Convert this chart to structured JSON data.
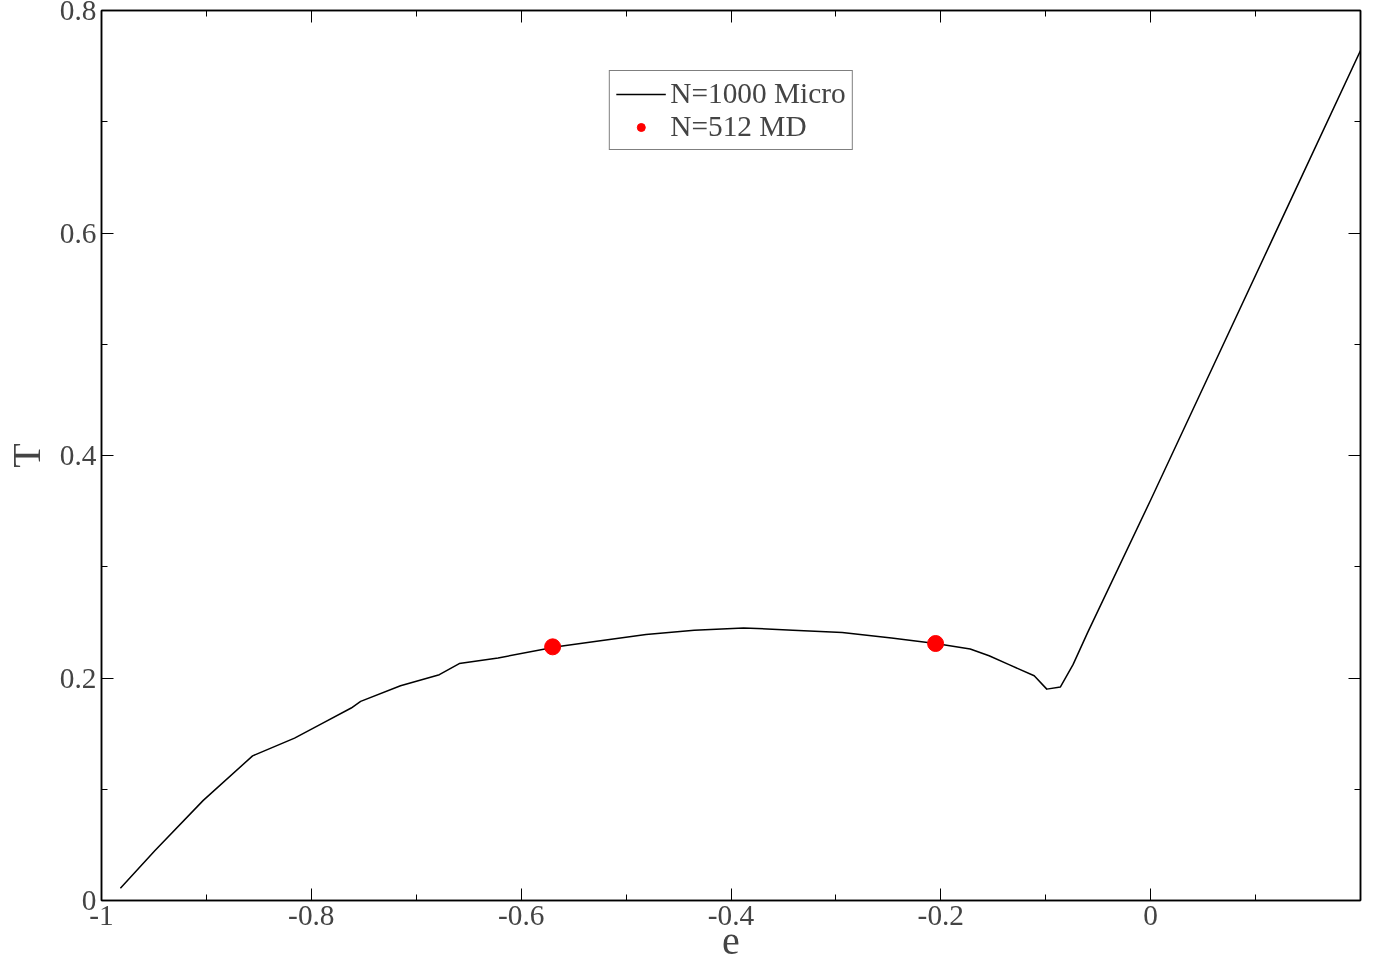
{
  "chart_data": {
    "type": "line",
    "xlabel": "e",
    "ylabel": "T",
    "xlim": [
      -1,
      0.2
    ],
    "ylim": [
      0,
      0.8
    ],
    "xticks": [
      -1,
      {
        "value": -0.9,
        "label": null
      },
      -0.8,
      {
        "value": -0.7,
        "label": null
      },
      -0.6,
      {
        "value": -0.5,
        "label": null
      },
      -0.4,
      {
        "value": -0.3,
        "label": null
      },
      -0.2,
      {
        "value": -0.1,
        "label": null
      },
      0,
      {
        "value": 0.1,
        "label": null
      }
    ],
    "yticks": [
      0,
      {
        "value": 0.1,
        "label": null
      },
      0.2,
      {
        "value": 0.3,
        "label": null
      },
      0.4,
      {
        "value": 0.5,
        "label": null
      },
      0.6,
      {
        "value": 0.7,
        "label": null
      },
      0.8
    ],
    "grid": false,
    "legend": "top",
    "series": [
      {
        "name": "N=1000 Micro",
        "color": "#000000",
        "marker": "none",
        "line_style": "solid",
        "x": [
          -0.982,
          -0.949,
          -0.903,
          -0.856,
          -0.816,
          -0.79,
          -0.762,
          -0.753,
          -0.715,
          -0.678,
          -0.659,
          -0.622,
          -0.566,
          -0.528,
          -0.481,
          -0.435,
          -0.388,
          -0.341,
          -0.294,
          -0.247,
          -0.205,
          -0.172,
          -0.154,
          -0.135,
          -0.111,
          -0.099,
          -0.086,
          -0.074,
          -0.06,
          0.0,
          0.2
        ],
        "values": [
          0.011,
          0.045,
          0.09,
          0.13,
          0.146,
          0.159,
          0.173,
          0.179,
          0.193,
          0.203,
          0.213,
          0.218,
          0.228,
          0.233,
          0.239,
          0.243,
          0.245,
          0.243,
          0.241,
          0.236,
          0.231,
          0.226,
          0.22,
          0.212,
          0.202,
          0.19,
          0.192,
          0.212,
          0.241,
          0.36,
          0.764
        ]
      },
      {
        "name": "N=512 MD",
        "type": "scatter",
        "color": "#ff0000",
        "marker": "circle",
        "x": [
          -0.57,
          -0.205
        ],
        "values": [
          0.228,
          0.231
        ]
      }
    ]
  }
}
